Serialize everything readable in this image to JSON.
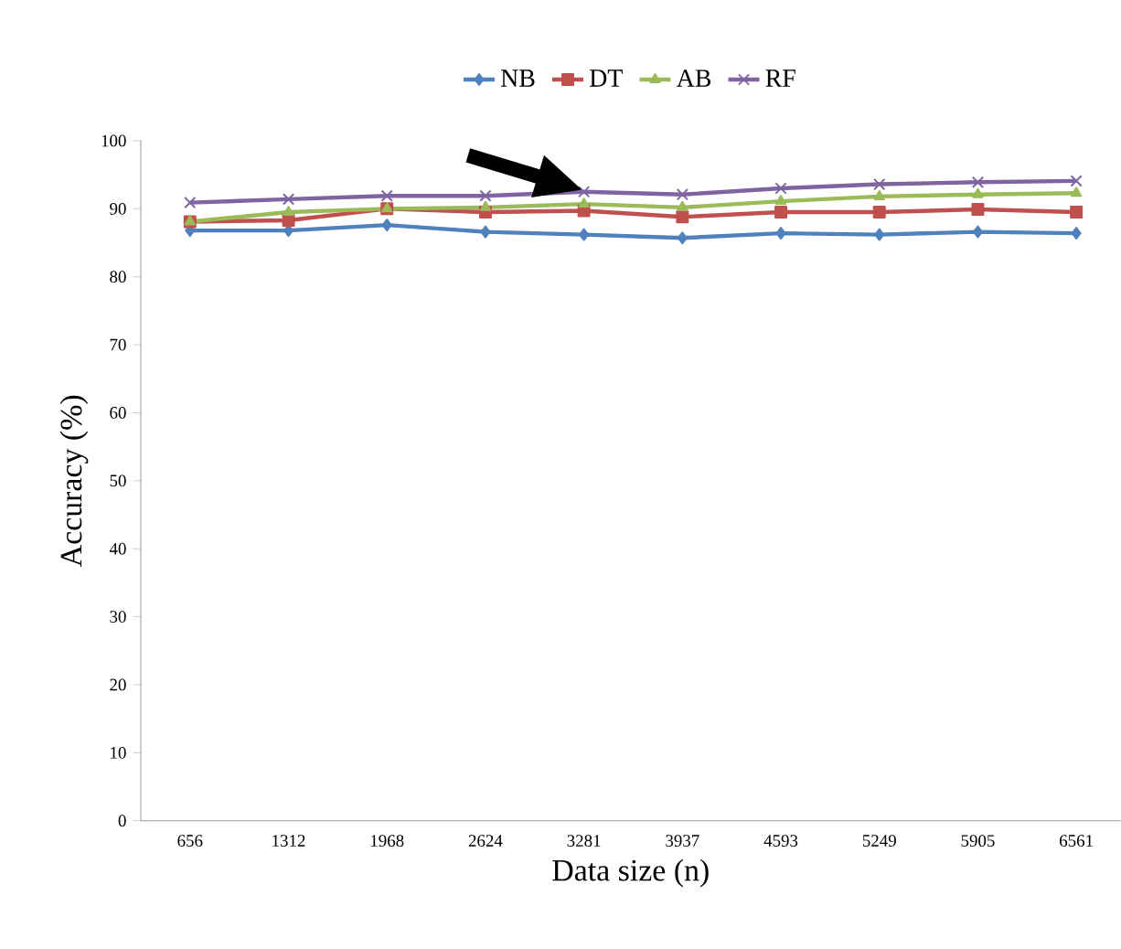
{
  "chart_data": {
    "type": "line",
    "xlabel": "Data size (n)",
    "ylabel": "Accuracy (%)",
    "categories": [
      "656",
      "1312",
      "1968",
      "2624",
      "3281",
      "3937",
      "4593",
      "5249",
      "5905",
      "6561"
    ],
    "ylim": [
      0,
      100
    ],
    "yticks": [
      0,
      10,
      20,
      30,
      40,
      50,
      60,
      70,
      80,
      90,
      100
    ],
    "grid": false,
    "legend": "top",
    "series": [
      {
        "name": "NB",
        "color": "#4f81bd",
        "marker": "diamond",
        "values": [
          86.8,
          86.8,
          87.6,
          86.6,
          86.2,
          85.7,
          86.4,
          86.2,
          86.6,
          86.4
        ]
      },
      {
        "name": "DT",
        "color": "#c0504d",
        "marker": "square",
        "values": [
          88.1,
          88.3,
          90,
          89.5,
          89.7,
          88.8,
          89.5,
          89.5,
          89.9,
          89.5
        ]
      },
      {
        "name": "AB",
        "color": "#9bbb59",
        "marker": "triangle",
        "values": [
          88.1,
          89.5,
          90,
          90.2,
          90.7,
          90.2,
          91.1,
          91.8,
          92.1,
          92.3
        ]
      },
      {
        "name": "RF",
        "color": "#8064a2",
        "marker": "cross",
        "values": [
          90.9,
          91.4,
          91.9,
          91.9,
          92.5,
          92.1,
          93,
          93.6,
          93.9,
          94.1
        ]
      }
    ]
  }
}
